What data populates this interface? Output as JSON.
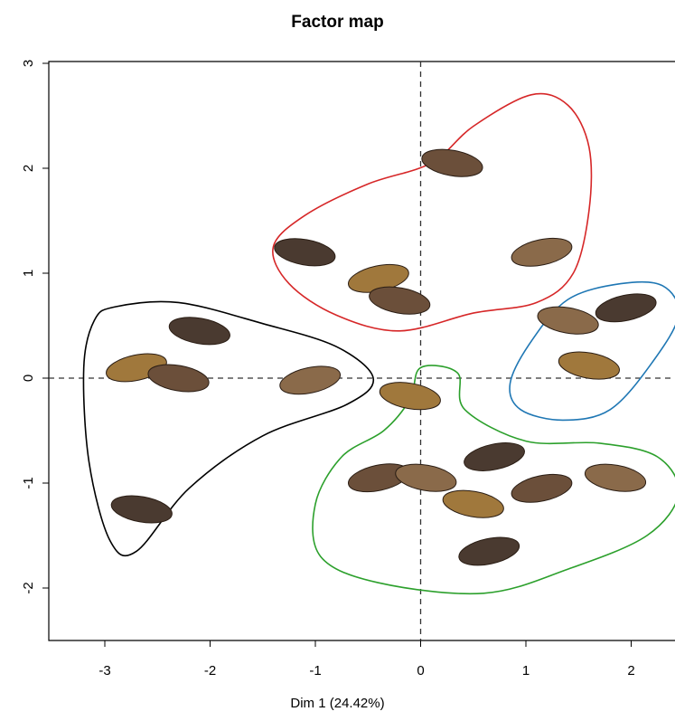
{
  "chart_data": {
    "type": "scatter",
    "title": "Factor map",
    "xlabel": "Dim 1 (24.42%)",
    "ylabel": "",
    "xlim": [
      -3.3,
      2.4
    ],
    "ylim": [
      -2.5,
      3.0
    ],
    "x_ticks": [
      "-3",
      "-2",
      "-1",
      "0",
      "1",
      "2"
    ],
    "y_ticks": [
      "-2",
      "-1",
      "0",
      "1",
      "2",
      "3"
    ],
    "reference_lines": {
      "x": 0,
      "y": 0,
      "style": "dashed"
    },
    "grid": false,
    "groups": [
      {
        "color": "#d62728",
        "outline": [
          [
            1.05,
            2.7
          ],
          [
            1.4,
            2.6
          ],
          [
            1.6,
            2.2
          ],
          [
            1.6,
            1.6
          ],
          [
            1.45,
            1.0
          ],
          [
            1.1,
            0.72
          ],
          [
            0.5,
            0.62
          ],
          [
            -0.2,
            0.45
          ],
          [
            -0.8,
            0.6
          ],
          [
            -1.25,
            0.9
          ],
          [
            -1.4,
            1.25
          ],
          [
            -1.1,
            1.55
          ],
          [
            -0.5,
            1.85
          ],
          [
            0.1,
            2.05
          ],
          [
            0.5,
            2.4
          ]
        ],
        "points": [
          [
            0.3,
            2.05
          ],
          [
            1.15,
            1.2
          ],
          [
            -1.1,
            1.2
          ],
          [
            -0.4,
            0.95
          ],
          [
            -0.2,
            0.74
          ]
        ]
      },
      {
        "color": "#1f77b4",
        "outline": [
          [
            1.4,
            0.75
          ],
          [
            1.9,
            0.9
          ],
          [
            2.3,
            0.88
          ],
          [
            2.45,
            0.6
          ],
          [
            2.2,
            0.15
          ],
          [
            1.8,
            -0.3
          ],
          [
            1.35,
            -0.4
          ],
          [
            0.95,
            -0.3
          ],
          [
            0.85,
            -0.05
          ],
          [
            1.05,
            0.35
          ]
        ],
        "points": [
          [
            1.4,
            0.55
          ],
          [
            1.95,
            0.67
          ],
          [
            1.6,
            0.12
          ]
        ]
      },
      {
        "color": "#000000",
        "outline": [
          [
            -2.9,
            0.68
          ],
          [
            -2.3,
            0.72
          ],
          [
            -1.5,
            0.52
          ],
          [
            -0.8,
            0.3
          ],
          [
            -0.45,
            0.0
          ],
          [
            -0.7,
            -0.25
          ],
          [
            -1.5,
            -0.55
          ],
          [
            -2.2,
            -1.05
          ],
          [
            -2.7,
            -1.65
          ],
          [
            -2.95,
            -1.55
          ],
          [
            -3.15,
            -0.8
          ],
          [
            -3.2,
            0.1
          ],
          [
            -3.1,
            0.55
          ]
        ],
        "points": [
          [
            -2.1,
            0.45
          ],
          [
            -2.7,
            0.1
          ],
          [
            -2.3,
            0.0
          ],
          [
            -1.05,
            -0.02
          ],
          [
            -2.65,
            -1.25
          ]
        ]
      },
      {
        "color": "#2ca02c",
        "outline": [
          [
            0.0,
            0.1
          ],
          [
            0.35,
            0.05
          ],
          [
            0.42,
            -0.3
          ],
          [
            1.0,
            -0.6
          ],
          [
            1.7,
            -0.62
          ],
          [
            2.25,
            -0.75
          ],
          [
            2.45,
            -1.1
          ],
          [
            2.15,
            -1.5
          ],
          [
            1.4,
            -1.82
          ],
          [
            0.6,
            -2.05
          ],
          [
            -0.4,
            -1.95
          ],
          [
            -0.95,
            -1.7
          ],
          [
            -1.0,
            -1.2
          ],
          [
            -0.75,
            -0.75
          ],
          [
            -0.35,
            -0.5
          ],
          [
            -0.1,
            -0.2
          ]
        ],
        "points": [
          [
            -0.1,
            -0.17
          ],
          [
            -0.4,
            -0.95
          ],
          [
            0.05,
            -0.95
          ],
          [
            0.7,
            -0.75
          ],
          [
            0.5,
            -1.2
          ],
          [
            1.15,
            -1.05
          ],
          [
            1.85,
            -0.95
          ],
          [
            0.65,
            -1.65
          ]
        ]
      }
    ]
  }
}
